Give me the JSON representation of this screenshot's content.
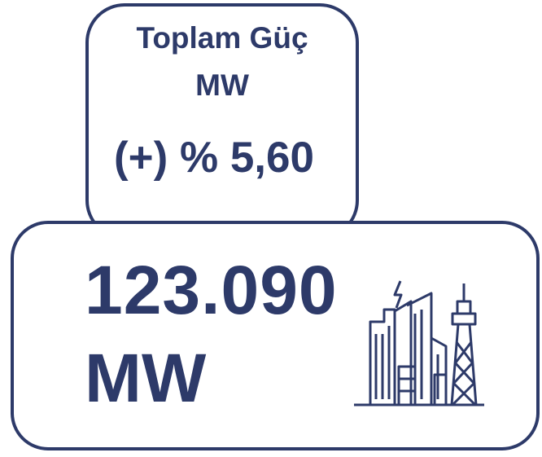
{
  "card": {
    "title": "Toplam Güç",
    "unit": "MW",
    "change": "(+) % 5,60",
    "value": "123.090",
    "value_unit": "MW"
  }
}
